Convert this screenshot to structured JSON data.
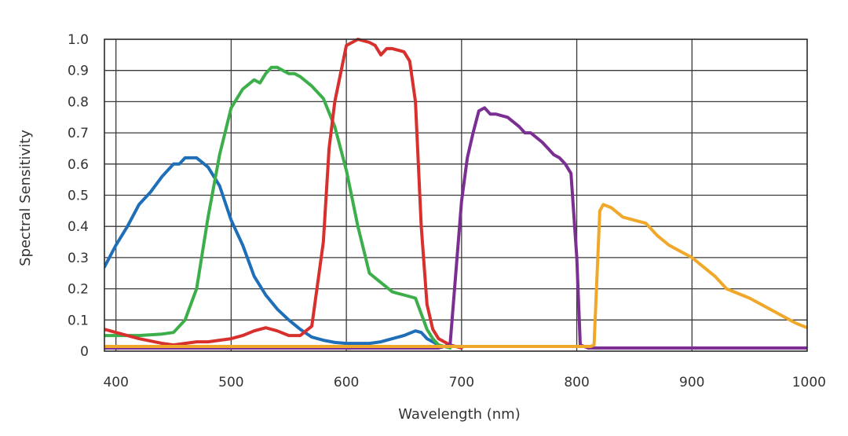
{
  "chart_data": {
    "type": "line",
    "xlabel": "Wavelength (nm)",
    "ylabel": "Spectral Sensitivity",
    "xlim": [
      390,
      1000
    ],
    "ylim": [
      0,
      1.0
    ],
    "x_ticks": [
      400,
      500,
      600,
      700,
      800,
      900,
      1000
    ],
    "x_tick_labels": [
      "400",
      "500",
      "600",
      "700",
      "800",
      "900",
      "1000"
    ],
    "y_ticks": [
      0,
      0.1,
      0.2,
      0.3,
      0.4,
      0.5,
      0.6,
      0.7,
      0.8,
      0.9,
      1.0
    ],
    "y_tick_labels": [
      "0",
      "0.1",
      "0.2",
      "0.3",
      "0.4",
      "0.5",
      "0.6",
      "0.7",
      "0.8",
      "0.9",
      "1.0"
    ],
    "grid": true,
    "series": [
      {
        "color": "#1f6fb8",
        "x": [
          390,
          400,
          410,
          420,
          430,
          440,
          450,
          455,
          460,
          465,
          470,
          480,
          490,
          500,
          510,
          520,
          530,
          540,
          550,
          560,
          570,
          580,
          590,
          600,
          610,
          620,
          630,
          640,
          650,
          660,
          665,
          670,
          680
        ],
        "y": [
          0.27,
          0.34,
          0.4,
          0.47,
          0.51,
          0.56,
          0.6,
          0.6,
          0.62,
          0.62,
          0.62,
          0.59,
          0.53,
          0.42,
          0.34,
          0.24,
          0.18,
          0.135,
          0.1,
          0.07,
          0.045,
          0.035,
          0.028,
          0.025,
          0.025,
          0.025,
          0.03,
          0.04,
          0.05,
          0.065,
          0.06,
          0.04,
          0.02
        ]
      },
      {
        "color": "#3cae4a",
        "x": [
          390,
          400,
          420,
          440,
          450,
          455,
          460,
          465,
          470,
          480,
          490,
          500,
          510,
          520,
          525,
          530,
          535,
          540,
          545,
          550,
          555,
          560,
          570,
          580,
          590,
          600,
          610,
          620,
          630,
          640,
          650,
          660,
          665,
          670,
          675,
          680,
          690
        ],
        "y": [
          0.05,
          0.05,
          0.05,
          0.055,
          0.06,
          0.08,
          0.1,
          0.15,
          0.2,
          0.43,
          0.63,
          0.78,
          0.84,
          0.87,
          0.86,
          0.89,
          0.91,
          0.91,
          0.9,
          0.89,
          0.89,
          0.88,
          0.85,
          0.81,
          0.72,
          0.58,
          0.4,
          0.25,
          0.22,
          0.19,
          0.18,
          0.17,
          0.12,
          0.07,
          0.04,
          0.02,
          0.01
        ]
      },
      {
        "color": "#d8302c",
        "x": [
          390,
          400,
          420,
          440,
          450,
          460,
          470,
          480,
          490,
          500,
          510,
          520,
          530,
          540,
          550,
          560,
          570,
          580,
          585,
          590,
          600,
          605,
          610,
          620,
          625,
          630,
          635,
          640,
          650,
          655,
          660,
          665,
          670,
          675,
          680,
          690,
          700
        ],
        "y": [
          0.07,
          0.06,
          0.04,
          0.025,
          0.02,
          0.025,
          0.03,
          0.03,
          0.035,
          0.04,
          0.05,
          0.065,
          0.075,
          0.065,
          0.05,
          0.05,
          0.08,
          0.35,
          0.65,
          0.8,
          0.98,
          0.99,
          1.0,
          0.99,
          0.98,
          0.95,
          0.97,
          0.97,
          0.96,
          0.93,
          0.8,
          0.4,
          0.15,
          0.07,
          0.04,
          0.02,
          0.01
        ]
      },
      {
        "color": "#7b2f93",
        "x": [
          380,
          680,
          690,
          695,
          700,
          705,
          710,
          715,
          720,
          725,
          730,
          740,
          750,
          755,
          760,
          770,
          775,
          780,
          785,
          790,
          795,
          800,
          803,
          810,
          1000
        ],
        "y": [
          0.01,
          0.01,
          0.02,
          0.25,
          0.48,
          0.62,
          0.7,
          0.77,
          0.78,
          0.76,
          0.76,
          0.75,
          0.72,
          0.7,
          0.7,
          0.67,
          0.65,
          0.63,
          0.62,
          0.6,
          0.57,
          0.3,
          0.02,
          0.01,
          0.01
        ]
      },
      {
        "color": "#f0a82a",
        "x": [
          380,
          812,
          815,
          820,
          823,
          830,
          840,
          850,
          860,
          870,
          880,
          890,
          900,
          920,
          930,
          950,
          970,
          990,
          1000
        ],
        "y": [
          0.015,
          0.015,
          0.02,
          0.45,
          0.47,
          0.46,
          0.43,
          0.42,
          0.41,
          0.37,
          0.34,
          0.32,
          0.3,
          0.24,
          0.2,
          0.17,
          0.13,
          0.09,
          0.075
        ]
      }
    ]
  }
}
